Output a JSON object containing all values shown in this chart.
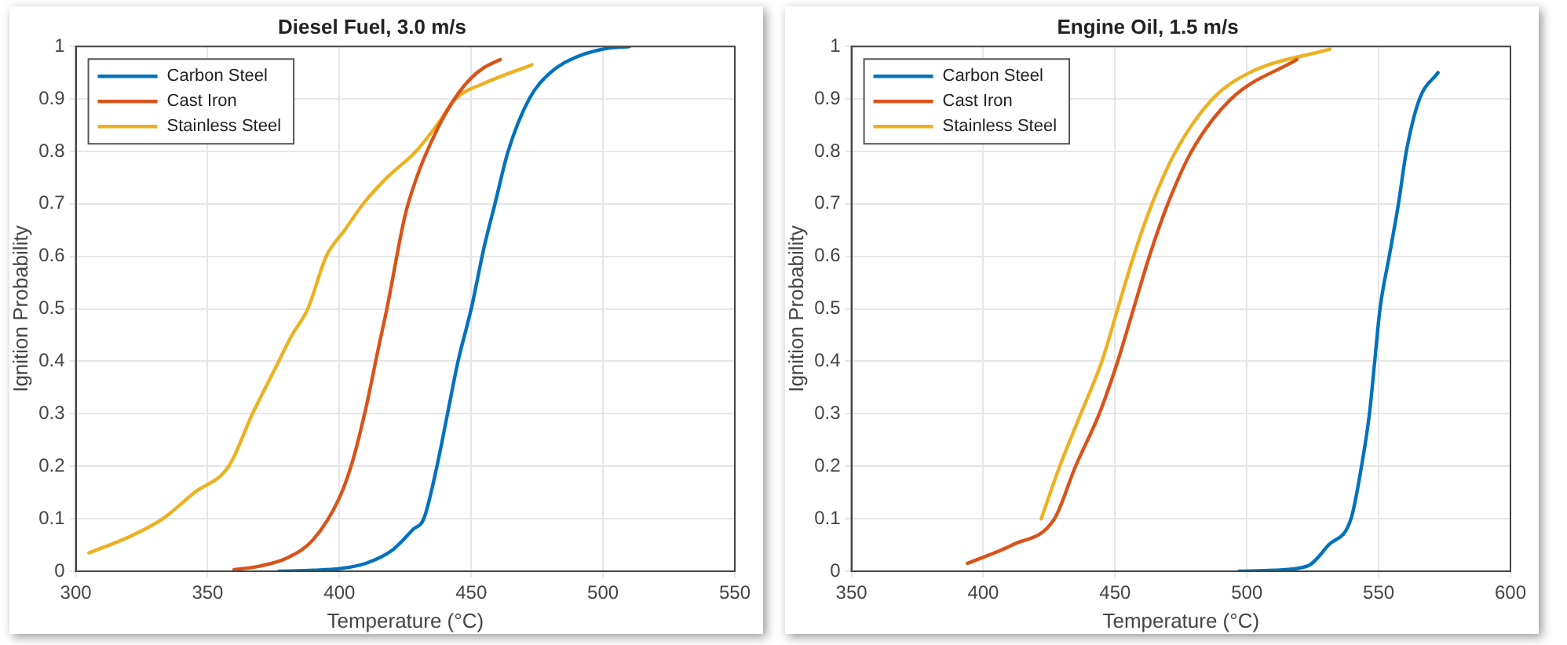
{
  "chart_data": [
    {
      "type": "line",
      "title": "Diesel Fuel, 3.0 m/s",
      "xlabel": "Temperature (°C)",
      "ylabel": "Ignition Probability",
      "xlim": [
        300,
        550
      ],
      "xticks": [
        300,
        350,
        400,
        450,
        500,
        550
      ],
      "ylim": [
        0,
        1
      ],
      "yticks": [
        0,
        0.1,
        0.2,
        0.3,
        0.4,
        0.5,
        0.6,
        0.7,
        0.8,
        0.9,
        1
      ],
      "grid": true,
      "legend": "top left",
      "marker": "none",
      "line_style": "solid",
      "series": [
        {
          "name": "Carbon Steel",
          "color": "#0072bd",
          "x": [
            377,
            390,
            400,
            410,
            420,
            428,
            432,
            437,
            441,
            445,
            450,
            455,
            459,
            464,
            472,
            480,
            490,
            500,
            510
          ],
          "values": [
            0,
            0.002,
            0.005,
            0.015,
            0.04,
            0.08,
            0.1,
            0.2,
            0.3,
            0.4,
            0.5,
            0.62,
            0.7,
            0.8,
            0.9,
            0.95,
            0.98,
            0.995,
            1
          ]
        },
        {
          "name": "Cast Iron",
          "color": "#d95319",
          "x": [
            360,
            370,
            380,
            390,
            400,
            405,
            410,
            415,
            418,
            425,
            430,
            435,
            440,
            445,
            450,
            455,
            461
          ],
          "values": [
            0.003,
            0.01,
            0.025,
            0.06,
            0.14,
            0.21,
            0.31,
            0.43,
            0.5,
            0.68,
            0.76,
            0.82,
            0.87,
            0.91,
            0.94,
            0.96,
            0.975
          ]
        },
        {
          "name": "Stainless Steel",
          "color": "#edb120",
          "x": [
            305,
            320,
            333,
            345,
            358,
            367,
            375,
            382,
            388,
            395,
            402,
            409,
            418,
            429,
            437,
            444,
            455,
            473
          ],
          "values": [
            0.035,
            0.065,
            0.1,
            0.15,
            0.2,
            0.3,
            0.38,
            0.45,
            0.5,
            0.6,
            0.65,
            0.7,
            0.75,
            0.8,
            0.85,
            0.9,
            0.93,
            0.965
          ]
        }
      ]
    },
    {
      "type": "line",
      "title": "Engine Oil, 1.5 m/s",
      "xlabel": "Temperature (°C)",
      "ylabel": "Ignition Probability",
      "xlim": [
        350,
        600
      ],
      "xticks": [
        350,
        400,
        450,
        500,
        550,
        600
      ],
      "ylim": [
        0,
        1
      ],
      "yticks": [
        0,
        0.1,
        0.2,
        0.3,
        0.4,
        0.5,
        0.6,
        0.7,
        0.8,
        0.9,
        1
      ],
      "grid": true,
      "legend": "top left",
      "marker": "none",
      "line_style": "solid",
      "series": [
        {
          "name": "Carbon Steel",
          "color": "#0072bd",
          "x": [
            497,
            510,
            523,
            531,
            539.5,
            543.5,
            546.5,
            548.5,
            550.5,
            554,
            557.5,
            560.5,
            565.5,
            572.5
          ],
          "values": [
            0,
            0.002,
            0.01,
            0.05,
            0.1,
            0.2,
            0.3,
            0.4,
            0.5,
            0.6,
            0.7,
            0.8,
            0.9,
            0.95
          ]
        },
        {
          "name": "Cast Iron",
          "color": "#d95319",
          "x": [
            394,
            411,
            427,
            435,
            444,
            451,
            457,
            463,
            470,
            479,
            494,
            519
          ],
          "values": [
            0.015,
            0.05,
            0.1,
            0.2,
            0.3,
            0.4,
            0.5,
            0.6,
            0.7,
            0.8,
            0.9,
            0.975
          ]
        },
        {
          "name": "Stainless Steel",
          "color": "#edb120",
          "x": [
            422,
            429,
            437,
            445,
            451,
            457,
            464,
            473,
            487,
            501,
            531.5
          ],
          "values": [
            0.1,
            0.2,
            0.3,
            0.4,
            0.5,
            0.6,
            0.7,
            0.8,
            0.9,
            0.95,
            0.995
          ]
        }
      ]
    }
  ]
}
